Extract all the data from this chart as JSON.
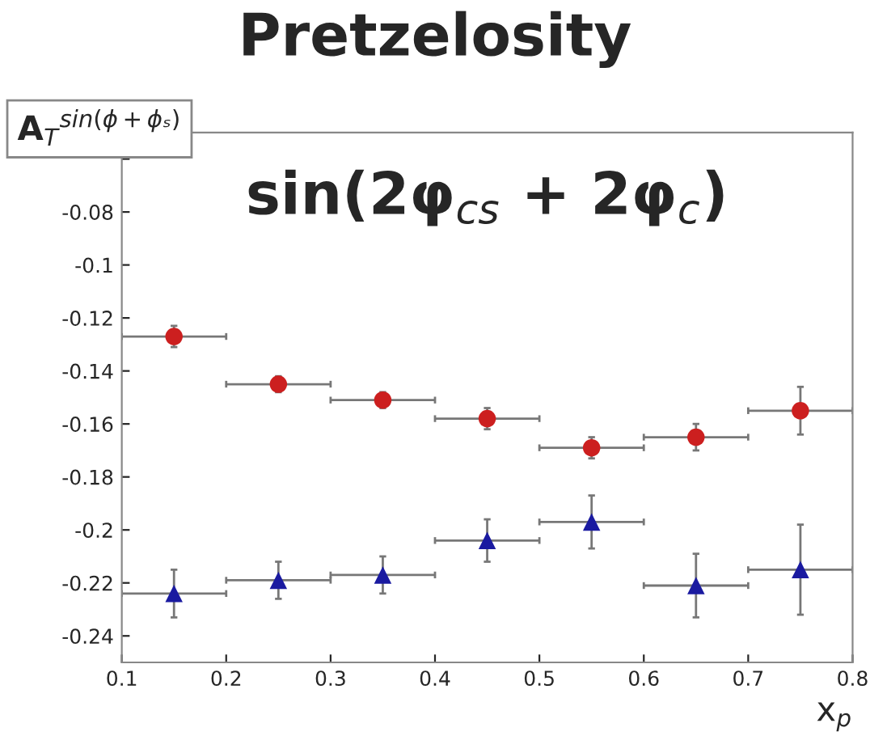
{
  "chart_data": {
    "type": "scatter",
    "title": "Pretzelosity",
    "xlabel": "x$_{p}$",
    "ylabel": "A$_{T}$$^{sin(ϕ+ϕₛ)}$",
    "annotations": [
      "sin(2φ$_{cs}$ + 2φ$_{c}$)"
    ],
    "x": [
      0.15,
      0.25,
      0.35,
      0.45,
      0.55,
      0.65,
      0.75
    ],
    "series": [
      {
        "color": "#cc1f1f",
        "marker": "circle",
        "values": [
          -0.127,
          -0.145,
          -0.151,
          -0.158,
          -0.169,
          -0.165,
          -0.155
        ],
        "errors": [
          0.004,
          0.003,
          0.003,
          0.004,
          0.004,
          0.005,
          0.009
        ],
        "xerrors": [
          0.05,
          0.05,
          0.05,
          0.05,
          0.05,
          0.05,
          0.05
        ]
      },
      {
        "color": "#1a1aa0",
        "marker": "triangle",
        "values": [
          -0.224,
          -0.219,
          -0.217,
          -0.204,
          -0.197,
          -0.221,
          -0.215
        ],
        "errors": [
          0.009,
          0.007,
          0.007,
          0.008,
          0.01,
          0.012,
          0.017
        ],
        "xerrors": [
          0.05,
          0.05,
          0.05,
          0.05,
          0.05,
          0.05,
          0.05
        ]
      }
    ],
    "xlim": [
      0.1,
      0.8
    ],
    "ylim": [
      -0.25,
      -0.05
    ],
    "xticks": [
      0.1,
      0.2,
      0.3,
      0.4,
      0.5,
      0.6,
      0.7,
      0.8
    ],
    "yticks": [
      -0.24,
      -0.22,
      -0.2,
      -0.18,
      -0.16,
      -0.14,
      -0.12,
      -0.1,
      -0.08,
      {
        "value": -0.06,
        "label": null
      }
    ],
    "grid": false,
    "legend": false
  }
}
